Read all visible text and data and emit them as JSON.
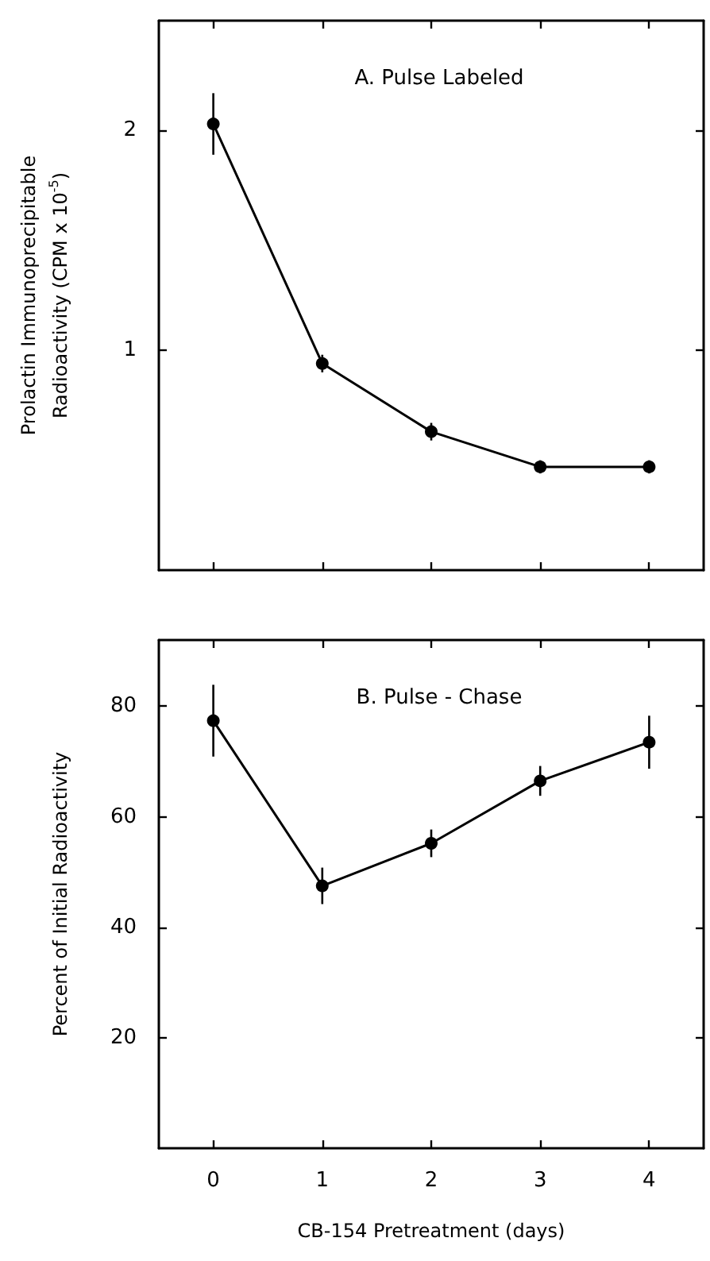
{
  "chart_data": [
    {
      "type": "line",
      "title": "A. Pulse Labeled",
      "ylabel": "Prolactin Immunoprecipitable Radioactivity (CPM x 10$^{-5}$)",
      "x": [
        0,
        1,
        2,
        3,
        4
      ],
      "values": [
        2.03,
        0.94,
        0.63,
        0.47,
        0.47
      ],
      "errors": [
        0.14,
        0.04,
        0.04,
        0.03,
        0.03
      ],
      "color": "#000000",
      "xlim": [
        -0.5,
        4.5
      ],
      "xticks": [
        0,
        1,
        2,
        3,
        4
      ],
      "ylim": [
        0,
        2.5
      ],
      "yticks": [
        1,
        2
      ],
      "tick_labels": "y",
      "grid": false,
      "marker": "circle",
      "line_style": "solid"
    },
    {
      "type": "line",
      "title": "B. Pulse - Chase",
      "xlabel": "CB-154 Pretreatment (days)",
      "ylabel": "Percent of Initial Radioactivity",
      "x": [
        0,
        1,
        2,
        3,
        4
      ],
      "values": [
        77.4,
        47.5,
        55.2,
        66.5,
        73.5
      ],
      "errors": [
        6.5,
        3.3,
        2.5,
        2.7,
        4.8
      ],
      "color": "#000000",
      "xlim": [
        -0.5,
        4.5
      ],
      "xticks": [
        0,
        1,
        2,
        3,
        4
      ],
      "ylim": [
        0,
        92
      ],
      "yticks": [
        20,
        40,
        60,
        80
      ],
      "grid": false,
      "marker": "circle",
      "line_style": "solid"
    }
  ]
}
